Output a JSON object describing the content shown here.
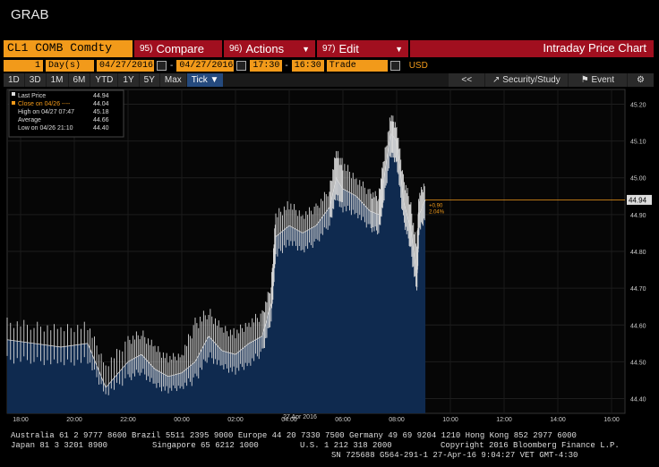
{
  "header": {
    "title": "GRAB"
  },
  "command_bar": {
    "ticker": "CL1 COMB Comdty",
    "compare": {
      "num": "95)",
      "label": "Compare"
    },
    "actions": {
      "num": "96)",
      "label": "Actions"
    },
    "edit": {
      "num": "97)",
      "label": "Edit"
    },
    "title": "Intraday Price Chart"
  },
  "params": {
    "period_value": "1",
    "period_unit": "Day(s)",
    "start_date": "04/27/2016",
    "end_date": "04/27/2016",
    "start_time": "17:30",
    "end_time": "16:30",
    "event": "Trade",
    "currency": "USD"
  },
  "ranges": [
    "1D",
    "3D",
    "1M",
    "6M",
    "YTD",
    "1Y",
    "5Y",
    "Max"
  ],
  "tick_label": "Tick",
  "toolbar": {
    "back": "<<",
    "security": "Security/Study",
    "event": "Event"
  },
  "legend": {
    "last": {
      "label": "Last Price",
      "value": "44.94"
    },
    "close": {
      "label": "Close on 04/26 ---- ",
      "value": "44.04"
    },
    "high": {
      "label": "High on 04/27 07:47",
      "value": "45.18"
    },
    "avg": {
      "label": "Average",
      "value": "44.66"
    },
    "low": {
      "label": "Low on 04/26 21:10",
      "value": "44.40"
    }
  },
  "annotation": {
    "change": "+0.90",
    "pct": "2.04%"
  },
  "last_price_tag": "44.94",
  "colors": {
    "orange": "#f29a1a",
    "red": "#a10f1f",
    "fill": "#0f2a4f",
    "line": "#d8d8d8"
  },
  "footer": {
    "line1": "Australia 61 2 9777 8600 Brazil 5511 2395 9000 Europe 44 20 7330 7500 Germany 49 69 9204 1210 Hong Kong 852 2977 6000",
    "line2a": "Japan 81 3 3201 8900",
    "line2b": "Singapore 65 6212 1000",
    "line2c": "U.S. 1 212 318 2000",
    "line2d": "Copyright 2016 Bloomberg Finance L.P.",
    "line3": "SN 725688 G564-291-1 27-Apr-16  9:04:27 VET  GMT-4:30"
  },
  "chart_data": {
    "type": "line",
    "ylim": [
      44.36,
      45.24
    ],
    "yticks": [
      "45.20",
      "45.10",
      "45.00",
      "44.90",
      "44.80",
      "44.70",
      "44.60",
      "44.50",
      "44.40"
    ],
    "xticks": [
      "18:00",
      "20:00",
      "22:00",
      "00:00",
      "02:00",
      "04:00",
      "06:00",
      "08:00",
      "10:00",
      "12:00",
      "14:00",
      "16:00"
    ],
    "date_label": "27 Apr 2016",
    "last_price": 44.94,
    "prev_close": 44.04,
    "average": 44.66,
    "x_hours": [
      17.5,
      18.5,
      19.5,
      20.5,
      21.17,
      22,
      22.5,
      23,
      23.5,
      0,
      0.5,
      1,
      1.5,
      2,
      2.5,
      3,
      3.33,
      3.5,
      4,
      4.5,
      5,
      5.5,
      5.75,
      6,
      6.5,
      7,
      7.33,
      7.5,
      7.78,
      8,
      8.25,
      8.5,
      8.75,
      8.83,
      9.07
    ],
    "price": [
      44.56,
      44.55,
      44.54,
      44.55,
      44.43,
      44.5,
      44.52,
      44.48,
      44.46,
      44.47,
      44.5,
      44.57,
      44.53,
      44.52,
      44.55,
      44.57,
      44.66,
      44.84,
      44.87,
      44.85,
      44.87,
      44.92,
      45.0,
      44.97,
      44.95,
      44.91,
      44.9,
      44.98,
      45.12,
      45.1,
      44.94,
      44.87,
      44.73,
      44.9,
      44.94
    ],
    "high": [
      44.62,
      44.61,
      44.6,
      44.61,
      44.5,
      44.57,
      44.59,
      44.55,
      44.52,
      44.53,
      44.62,
      44.65,
      44.6,
      44.59,
      44.62,
      44.64,
      44.72,
      44.91,
      44.94,
      44.91,
      44.93,
      44.98,
      45.08,
      45.05,
      45.01,
      44.97,
      44.96,
      45.05,
      45.18,
      45.15,
      45.01,
      44.95,
      44.82,
      44.96,
      45.0
    ],
    "low": [
      44.49,
      44.49,
      44.48,
      44.49,
      44.4,
      44.44,
      44.46,
      44.42,
      44.41,
      44.42,
      44.43,
      44.5,
      44.47,
      44.46,
      44.48,
      44.51,
      44.6,
      44.77,
      44.81,
      44.79,
      44.81,
      44.86,
      44.93,
      44.9,
      44.89,
      44.85,
      44.84,
      44.91,
      45.05,
      45.03,
      44.87,
      44.8,
      44.67,
      44.84,
      44.88
    ]
  }
}
